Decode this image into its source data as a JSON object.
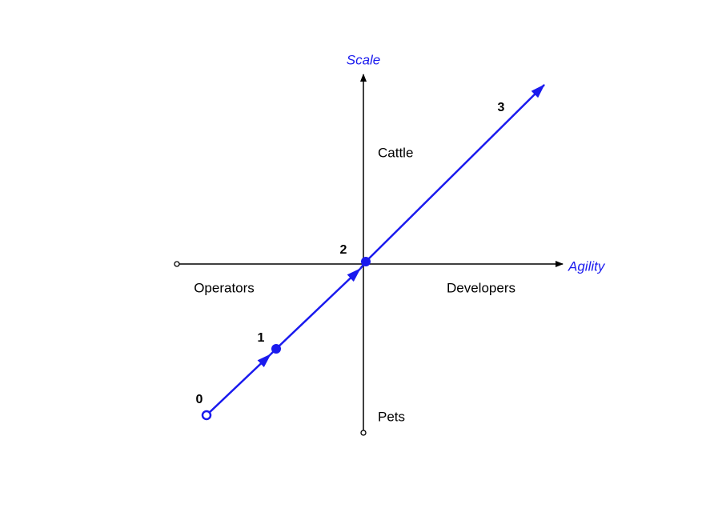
{
  "axes": {
    "vertical": "Scale",
    "horizontal": "Agility"
  },
  "quadrants": {
    "top": "Cattle",
    "left": "Operators",
    "right": "Developers",
    "bottom": "Pets"
  },
  "path_points": [
    "0",
    "1",
    "2",
    "3"
  ]
}
